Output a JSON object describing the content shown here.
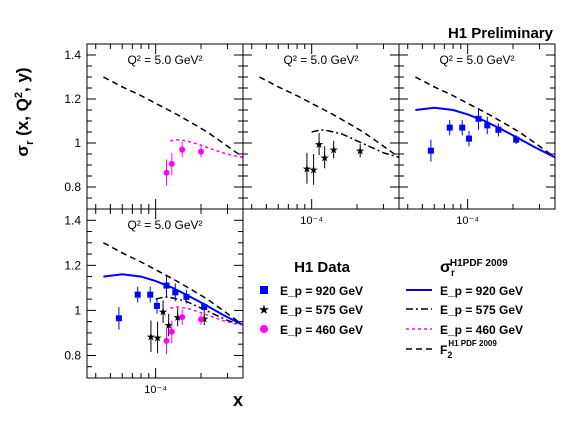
{
  "header": {
    "title": "H1 Preliminary"
  },
  "colors": {
    "e920": "#0000ff",
    "e575": "#000000",
    "e460": "#ff00ff",
    "f2": "#000000"
  },
  "chart_data": {
    "type": "scatter",
    "y_axis_label": "σ_r (x, Q², y)",
    "x_axis_label": "x",
    "x_scale": "log",
    "xlim": [
      3.5e-05,
      0.00038
    ],
    "ylim": [
      0.7,
      1.45
    ],
    "y_ticks": [
      "0.8",
      "1",
      "1.2",
      "1.4"
    ],
    "x_tick_label": "10⁻⁴",
    "panel_title_text": "Q² = 5.0 GeV²",
    "panels": [
      {
        "id": "top-left",
        "title": "Q² = 5.0 GeV²",
        "series": [
          "e460"
        ]
      },
      {
        "id": "top-middle",
        "title": "Q² = 5.0 GeV²",
        "series": [
          "e575"
        ]
      },
      {
        "id": "top-right",
        "title": "Q² = 5.0 GeV²",
        "series": [
          "e920"
        ]
      },
      {
        "id": "bottom-left",
        "title": "Q² = 5.0 GeV²",
        "series": [
          "e920",
          "e575",
          "e460"
        ]
      }
    ],
    "data": {
      "e920": {
        "name": "E_p = 920 GeV",
        "points": [
          {
            "x": 5.7e-05,
            "y": 0.965,
            "err": 0.05
          },
          {
            "x": 7.6e-05,
            "y": 1.07,
            "err": 0.035
          },
          {
            "x": 9.2e-05,
            "y": 1.07,
            "err": 0.035
          },
          {
            "x": 0.000102,
            "y": 1.02,
            "err": 0.035
          },
          {
            "x": 0.000118,
            "y": 1.11,
            "err": 0.05
          },
          {
            "x": 0.000135,
            "y": 1.08,
            "err": 0.04
          },
          {
            "x": 0.00016,
            "y": 1.06,
            "err": 0.03
          },
          {
            "x": 0.00021,
            "y": 1.015,
            "err": 0.02
          }
        ]
      },
      "e575": {
        "name": "E_p = 575 GeV",
        "points": [
          {
            "x": 9.3e-05,
            "y": 0.885,
            "err": 0.07
          },
          {
            "x": 0.000103,
            "y": 0.88,
            "err": 0.07
          },
          {
            "x": 0.000112,
            "y": 0.995,
            "err": 0.05
          },
          {
            "x": 0.000122,
            "y": 0.935,
            "err": 0.05
          },
          {
            "x": 0.00014,
            "y": 0.97,
            "err": 0.04
          },
          {
            "x": 0.00021,
            "y": 0.965,
            "err": 0.03
          }
        ]
      },
      "e460": {
        "name": "E_p = 460 GeV",
        "points": [
          {
            "x": 0.000118,
            "y": 0.865,
            "err": 0.06
          },
          {
            "x": 0.000128,
            "y": 0.905,
            "err": 0.05
          },
          {
            "x": 0.00015,
            "y": 0.97,
            "err": 0.035
          },
          {
            "x": 0.0002,
            "y": 0.96,
            "err": 0.025
          }
        ]
      }
    },
    "curves": {
      "e920": {
        "name": "E_p = 920 GeV",
        "style": "solid",
        "x": [
          4.5e-05,
          6e-05,
          8e-05,
          0.0001,
          0.00013,
          0.00017,
          0.00022,
          0.00028,
          0.00038
        ],
        "y": [
          1.15,
          1.16,
          1.15,
          1.13,
          1.1,
          1.06,
          1.02,
          0.98,
          0.935
        ]
      },
      "e575": {
        "name": "E_p = 575 GeV",
        "style": "dashdot",
        "x": [
          0.0001,
          0.000115,
          0.00013,
          0.00016,
          0.0002,
          0.00025,
          0.0003,
          0.00038
        ],
        "y": [
          1.05,
          1.06,
          1.055,
          1.04,
          1.01,
          0.98,
          0.955,
          0.935
        ]
      },
      "e460": {
        "name": "E_p = 460 GeV",
        "style": "dotted",
        "x": [
          0.000125,
          0.00014,
          0.00016,
          0.00019,
          0.00023,
          0.00028,
          0.00033,
          0.00038
        ],
        "y": [
          1.01,
          1.015,
          1.01,
          0.995,
          0.975,
          0.955,
          0.942,
          0.935
        ]
      },
      "f2": {
        "name": "F₂^{H1 PDF 2009}",
        "style": "dashed",
        "x": [
          4.5e-05,
          6e-05,
          8e-05,
          0.0001,
          0.00013,
          0.00017,
          0.00022,
          0.00028,
          0.00038
        ],
        "y": [
          1.3,
          1.255,
          1.215,
          1.18,
          1.14,
          1.095,
          1.05,
          1.0,
          0.935
        ]
      }
    },
    "legend": {
      "data_title": "H1 Data",
      "theory_title": "σ_r^{H1PDF 2009}",
      "data_entries": [
        {
          "series": "e920",
          "label": "E_p = 920 GeV"
        },
        {
          "series": "e575",
          "label": "E_p = 575 GeV"
        },
        {
          "series": "e460",
          "label": "E_p = 460 GeV"
        }
      ],
      "curve_entries": [
        {
          "series": "e920",
          "label": "E_p = 920 GeV"
        },
        {
          "series": "e575",
          "label": "E_p = 575 GeV"
        },
        {
          "series": "e460",
          "label": "E_p = 460 GeV"
        },
        {
          "series": "f2",
          "label": "F₂^{H1 PDF 2009}"
        }
      ]
    }
  }
}
